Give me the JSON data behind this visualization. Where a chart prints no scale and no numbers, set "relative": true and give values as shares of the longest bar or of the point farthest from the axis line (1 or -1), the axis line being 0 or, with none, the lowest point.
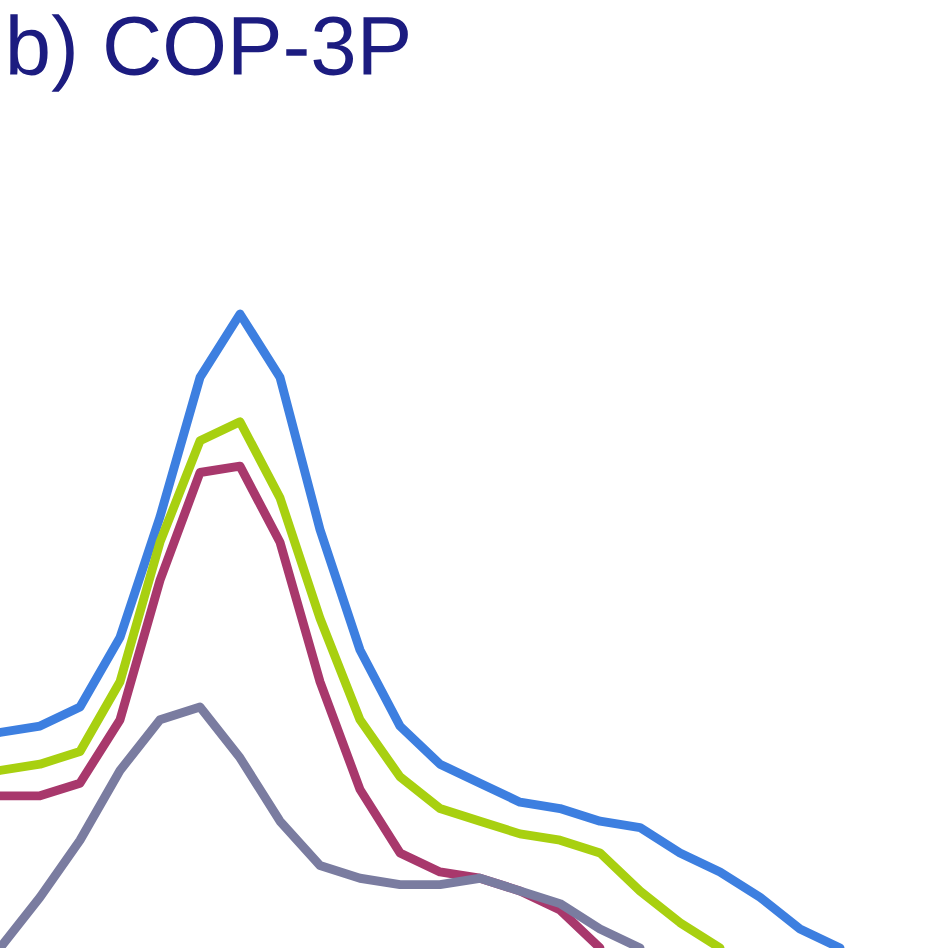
{
  "chart_data": {
    "type": "line",
    "title": "b) COP-3P",
    "relative": true,
    "marker": "none",
    "line_style": "solid",
    "categories": [
      null,
      null,
      null,
      null,
      null,
      null,
      null,
      null,
      null,
      null,
      null,
      null,
      null,
      null,
      null,
      null,
      null,
      null,
      null,
      null,
      null,
      null,
      null,
      null
    ],
    "series": [
      {
        "color": "#3d7fe0",
        "values": [
          0.34,
          0.35,
          0.38,
          0.49,
          0.68,
          0.9,
          1.0,
          0.9,
          0.66,
          0.47,
          0.35,
          0.29,
          0.26,
          0.23,
          0.22,
          0.2,
          0.19,
          0.15,
          0.12,
          0.08,
          0.03,
          0.0,
          null,
          null
        ]
      },
      {
        "color": "#a8d010",
        "values": [
          0.28,
          0.29,
          0.31,
          0.42,
          0.64,
          0.8,
          0.83,
          0.71,
          0.52,
          0.36,
          0.27,
          0.22,
          0.2,
          0.18,
          0.17,
          0.15,
          0.09,
          0.04,
          0.0,
          null,
          null,
          null,
          null,
          null
        ]
      },
      {
        "color": "#a8386c",
        "values": [
          0.24,
          0.24,
          0.26,
          0.36,
          0.58,
          0.75,
          0.76,
          0.64,
          0.42,
          0.25,
          0.15,
          0.12,
          0.11,
          0.09,
          0.06,
          0.0,
          null,
          null,
          null,
          null,
          null,
          null,
          null,
          null
        ]
      },
      {
        "color": "#7a7ca0",
        "values": [
          0.0,
          0.08,
          0.17,
          0.28,
          0.36,
          0.38,
          0.3,
          0.2,
          0.13,
          0.11,
          0.1,
          0.1,
          0.11,
          0.09,
          0.07,
          0.03,
          0.0,
          null,
          null,
          null,
          null,
          null,
          null,
          null
        ]
      }
    ]
  }
}
